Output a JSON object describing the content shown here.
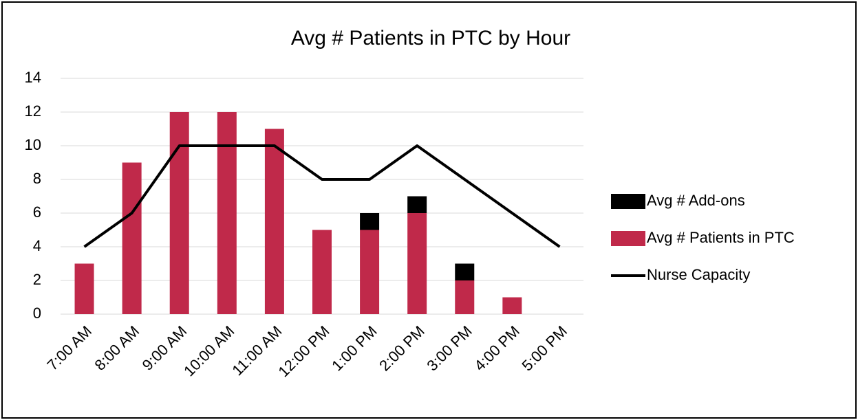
{
  "chart_data": {
    "type": "bar",
    "title": "Avg # Patients in PTC by Hour",
    "categories": [
      "7:00 AM",
      "8:00 AM",
      "9:00 AM",
      "10:00 AM",
      "11:00 AM",
      "12:00 PM",
      "1:00 PM",
      "2:00 PM",
      "3:00 PM",
      "4:00 PM",
      "5:00 PM"
    ],
    "series": [
      {
        "name": "Avg # Patients in PTC",
        "type": "bar",
        "color": "#c0294a",
        "values": [
          3,
          9,
          12,
          12,
          11,
          5,
          5,
          6,
          2,
          1,
          0
        ]
      },
      {
        "name": "Avg # Add-ons",
        "type": "bar",
        "color": "#000000",
        "values": [
          0,
          0,
          0,
          0,
          0,
          0,
          1,
          1,
          1,
          0,
          0
        ]
      },
      {
        "name": "Nurse Capacity",
        "type": "line",
        "color": "#000000",
        "values": [
          4,
          6,
          10,
          10,
          10,
          8,
          8,
          10,
          8,
          6,
          4
        ]
      }
    ],
    "stacked": true,
    "ylim": [
      0,
      14
    ],
    "yticks": [
      0,
      2,
      4,
      6,
      8,
      10,
      12,
      14
    ],
    "grid": true,
    "legend": "right"
  }
}
